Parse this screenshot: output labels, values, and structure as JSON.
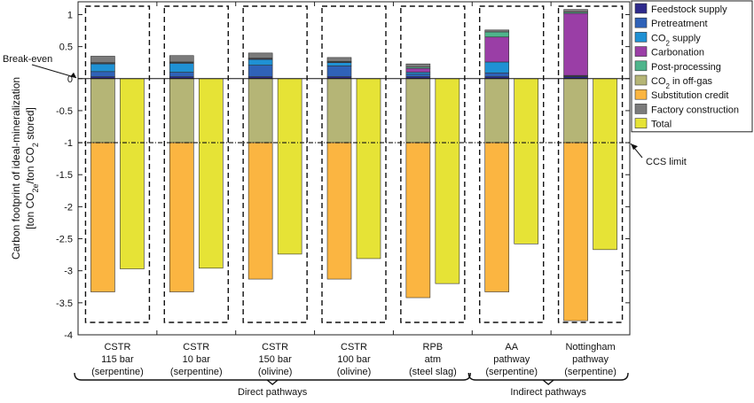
{
  "chart_data": {
    "type": "bar",
    "ylabel_line1": "Carbon footprint of ideal-mineralization",
    "ylabel_line2": "[ton CO2e/ton CO2 stored]",
    "ylim": [
      -4,
      1.2
    ],
    "yticks": [
      1,
      0.5,
      0,
      -0.5,
      -1,
      -1.5,
      -2,
      -2.5,
      -3,
      -3.5,
      -4
    ],
    "grid": false,
    "legend_position": "top-right",
    "annotations": {
      "break_even": "Break-even",
      "ccs_limit": "CCS limit",
      "ccs_limit_value": -1
    },
    "colors": {
      "Feedstock supply": "#2e2a8c",
      "Pretreatment": "#2f62b8",
      "CO2 supply": "#1f91d4",
      "Carbonation": "#9a3ea6",
      "Post-processing": "#4fb58c",
      "CO2 in off-gas": "#b5b576",
      "Substitution credit": "#fbb541",
      "Factory construction": "#7b7b7b",
      "Total": "#e6e336"
    },
    "legend": [
      {
        "key": "Feedstock supply",
        "label": "Feedstock supply"
      },
      {
        "key": "Pretreatment",
        "label": "Pretreatment"
      },
      {
        "key": "CO2 supply",
        "label": "CO2 supply"
      },
      {
        "key": "Carbonation",
        "label": "Carbonation"
      },
      {
        "key": "Post-processing",
        "label": "Post-processing"
      },
      {
        "key": "CO2 in off-gas",
        "label": "CO2 in off-gas"
      },
      {
        "key": "Substitution credit",
        "label": "Substitution credit"
      },
      {
        "key": "Factory construction",
        "label": "Factory construction"
      },
      {
        "key": "Total",
        "label": "Total"
      }
    ],
    "categories": [
      {
        "lines": [
          "CSTR",
          "115 bar",
          "(serpentine)"
        ],
        "positive": [
          [
            "Feedstock supply",
            0.03
          ],
          [
            "Pretreatment",
            0.08
          ],
          [
            "CO2 supply",
            0.12
          ],
          [
            "Carbonation",
            0.01
          ],
          [
            "Post-processing",
            0.01
          ],
          [
            "Factory construction",
            0.1
          ]
        ],
        "co2_offgas": -1.0,
        "substitution": -2.33,
        "total": -2.97
      },
      {
        "lines": [
          "CSTR",
          "10 bar",
          "(serpentine)"
        ],
        "positive": [
          [
            "Feedstock supply",
            0.03
          ],
          [
            "Pretreatment",
            0.07
          ],
          [
            "CO2 supply",
            0.14
          ],
          [
            "Carbonation",
            0.01
          ],
          [
            "Post-processing",
            0.01
          ],
          [
            "Factory construction",
            0.1
          ]
        ],
        "co2_offgas": -1.0,
        "substitution": -2.33,
        "total": -2.96
      },
      {
        "lines": [
          "CSTR",
          "150 bar",
          "(olivine)"
        ],
        "positive": [
          [
            "Feedstock supply",
            0.03
          ],
          [
            "Pretreatment",
            0.18
          ],
          [
            "CO2 supply",
            0.09
          ],
          [
            "Carbonation",
            0.01
          ],
          [
            "Post-processing",
            0.01
          ],
          [
            "Factory construction",
            0.08
          ]
        ],
        "co2_offgas": -1.0,
        "substitution": -2.13,
        "total": -2.74
      },
      {
        "lines": [
          "CSTR",
          "100 bar",
          "(olivine)"
        ],
        "positive": [
          [
            "Feedstock supply",
            0.03
          ],
          [
            "Pretreatment",
            0.17
          ],
          [
            "CO2 supply",
            0.05
          ],
          [
            "Carbonation",
            0.01
          ],
          [
            "Post-processing",
            0.01
          ],
          [
            "Factory construction",
            0.06
          ]
        ],
        "co2_offgas": -1.0,
        "substitution": -2.13,
        "total": -2.81
      },
      {
        "lines": [
          "RPB",
          "atm",
          "(steel slag)"
        ],
        "positive": [
          [
            "Feedstock supply",
            0.03
          ],
          [
            "Pretreatment",
            0.04
          ],
          [
            "CO2 supply",
            0.03
          ],
          [
            "Carbonation",
            0.06
          ],
          [
            "Post-processing",
            0.02
          ],
          [
            "Factory construction",
            0.05
          ]
        ],
        "co2_offgas": -1.0,
        "substitution": -2.42,
        "total": -3.2
      },
      {
        "lines": [
          "AA",
          "pathway",
          "(serpentine)"
        ],
        "positive": [
          [
            "Feedstock supply",
            0.03
          ],
          [
            "Pretreatment",
            0.06
          ],
          [
            "CO2 supply",
            0.17
          ],
          [
            "Carbonation",
            0.39
          ],
          [
            "Post-processing",
            0.08
          ],
          [
            "Factory construction",
            0.03
          ]
        ],
        "co2_offgas": -1.0,
        "substitution": -2.33,
        "total": -2.58
      },
      {
        "lines": [
          "Nottingham",
          "pathway",
          "(serpentine)"
        ],
        "positive": [
          [
            "Feedstock supply",
            0.03
          ],
          [
            "Pretreatment",
            0.01
          ],
          [
            "CO2 supply",
            0.01
          ],
          [
            "Carbonation",
            0.97
          ],
          [
            "Post-processing",
            0.02
          ],
          [
            "Factory construction",
            0.04
          ]
        ],
        "co2_offgas": -1.0,
        "substitution": -2.78,
        "total": -2.67
      }
    ],
    "groups": [
      {
        "label": "Direct pathways",
        "from": 0,
        "to": 4
      },
      {
        "label": "Indirect pathways",
        "from": 5,
        "to": 6
      }
    ]
  }
}
